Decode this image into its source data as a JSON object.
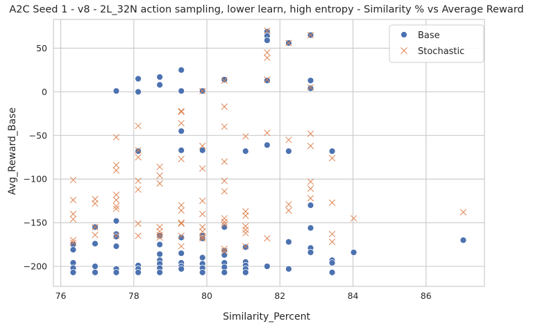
{
  "chart_data": {
    "type": "scatter",
    "title": "A2C Seed 1 - v8 - 2L_32N action sampling, lower learn, high entropy - Similarity % vs Average Reward",
    "xlabel": "Similarity_Percent",
    "ylabel": "Avg_Reward_Base",
    "xlim": [
      75.8,
      87.6
    ],
    "ylim": [
      -223,
      83
    ],
    "xticks": [
      76,
      78,
      80,
      82,
      84,
      86
    ],
    "yticks": [
      -200,
      -150,
      -100,
      -50,
      0,
      50
    ],
    "grid": true,
    "legend_position": "top-right",
    "series": [
      {
        "name": "Base",
        "marker": "circle",
        "color": "#4c72b0",
        "points": [
          [
            76.34,
            -175
          ],
          [
            76.34,
            -181
          ],
          [
            76.34,
            -196
          ],
          [
            76.34,
            -202
          ],
          [
            76.34,
            -207
          ],
          [
            76.94,
            -155
          ],
          [
            76.94,
            -174
          ],
          [
            76.94,
            -200
          ],
          [
            76.94,
            -207
          ],
          [
            77.52,
            1
          ],
          [
            77.52,
            -148
          ],
          [
            77.52,
            -163
          ],
          [
            77.52,
            -166
          ],
          [
            77.52,
            -177
          ],
          [
            77.52,
            -203
          ],
          [
            77.52,
            -207
          ],
          [
            78.12,
            15
          ],
          [
            78.12,
            0
          ],
          [
            78.12,
            -68
          ],
          [
            78.12,
            -199
          ],
          [
            78.12,
            -203
          ],
          [
            78.12,
            -207
          ],
          [
            78.71,
            17
          ],
          [
            78.71,
            8
          ],
          [
            78.71,
            -165
          ],
          [
            78.71,
            -175
          ],
          [
            78.71,
            -186
          ],
          [
            78.71,
            -193
          ],
          [
            78.71,
            -197
          ],
          [
            78.71,
            -202
          ],
          [
            78.71,
            -207
          ],
          [
            79.3,
            25
          ],
          [
            79.3,
            1
          ],
          [
            79.3,
            -45
          ],
          [
            79.3,
            -67
          ],
          [
            79.3,
            -167
          ],
          [
            79.3,
            -185
          ],
          [
            79.3,
            -196
          ],
          [
            79.3,
            -200
          ],
          [
            79.3,
            -203
          ],
          [
            79.88,
            1
          ],
          [
            79.88,
            -67
          ],
          [
            79.88,
            -165
          ],
          [
            79.88,
            -168
          ],
          [
            79.88,
            -190
          ],
          [
            79.88,
            -197
          ],
          [
            79.88,
            -202
          ],
          [
            79.88,
            -207
          ],
          [
            80.48,
            14
          ],
          [
            80.48,
            -155
          ],
          [
            80.48,
            -182
          ],
          [
            80.48,
            -187
          ],
          [
            80.48,
            -196
          ],
          [
            80.48,
            -201
          ],
          [
            80.48,
            -207
          ],
          [
            81.06,
            -68
          ],
          [
            81.06,
            -178
          ],
          [
            81.06,
            -195
          ],
          [
            81.06,
            -199
          ],
          [
            81.06,
            -203
          ],
          [
            81.06,
            -207
          ],
          [
            81.65,
            69
          ],
          [
            81.65,
            64
          ],
          [
            81.65,
            59
          ],
          [
            81.65,
            13
          ],
          [
            81.65,
            -61
          ],
          [
            81.65,
            -200
          ],
          [
            82.24,
            56
          ],
          [
            82.24,
            -68
          ],
          [
            82.24,
            -172
          ],
          [
            82.24,
            -203
          ],
          [
            82.84,
            65
          ],
          [
            82.84,
            13
          ],
          [
            82.84,
            4
          ],
          [
            82.84,
            -130
          ],
          [
            82.84,
            -156
          ],
          [
            82.84,
            -179
          ],
          [
            82.84,
            -184
          ],
          [
            83.43,
            -68
          ],
          [
            83.43,
            -193
          ],
          [
            83.43,
            -196
          ],
          [
            83.43,
            -207
          ],
          [
            84.02,
            -184
          ],
          [
            87.02,
            -170
          ]
        ]
      },
      {
        "name": "Stochastic",
        "marker": "x",
        "color": "#dd8452",
        "points": [
          [
            76.34,
            -101
          ],
          [
            76.34,
            -124
          ],
          [
            76.34,
            -140
          ],
          [
            76.34,
            -146
          ],
          [
            76.34,
            -170
          ],
          [
            76.34,
            -173
          ],
          [
            76.94,
            -123
          ],
          [
            76.94,
            -128
          ],
          [
            76.94,
            -155
          ],
          [
            76.94,
            -164
          ],
          [
            77.52,
            -52
          ],
          [
            77.52,
            -84
          ],
          [
            77.52,
            -90
          ],
          [
            77.52,
            -118
          ],
          [
            77.52,
            -124
          ],
          [
            77.52,
            -131
          ],
          [
            77.52,
            -134
          ],
          [
            77.52,
            -165
          ],
          [
            78.12,
            -39
          ],
          [
            78.12,
            -67
          ],
          [
            78.12,
            -75
          ],
          [
            78.12,
            -102
          ],
          [
            78.12,
            -112
          ],
          [
            78.12,
            -151
          ],
          [
            78.12,
            -165
          ],
          [
            78.71,
            -86
          ],
          [
            78.71,
            -96
          ],
          [
            78.71,
            -105
          ],
          [
            78.71,
            -155
          ],
          [
            78.71,
            -160
          ],
          [
            78.71,
            -164
          ],
          [
            78.71,
            -167
          ],
          [
            79.3,
            -22
          ],
          [
            79.3,
            -23
          ],
          [
            79.3,
            -36
          ],
          [
            79.3,
            -77
          ],
          [
            79.3,
            -130
          ],
          [
            79.3,
            -136
          ],
          [
            79.3,
            -150
          ],
          [
            79.3,
            -151
          ],
          [
            79.3,
            -165
          ],
          [
            79.3,
            -177
          ],
          [
            79.88,
            1
          ],
          [
            79.88,
            -62
          ],
          [
            79.88,
            -88
          ],
          [
            79.88,
            -125
          ],
          [
            79.88,
            -140
          ],
          [
            79.88,
            -155
          ],
          [
            79.88,
            -160
          ],
          [
            79.88,
            -166
          ],
          [
            79.88,
            -168
          ],
          [
            80.48,
            13
          ],
          [
            80.48,
            -17
          ],
          [
            80.48,
            -40
          ],
          [
            80.48,
            -80
          ],
          [
            80.48,
            -102
          ],
          [
            80.48,
            -114
          ],
          [
            80.48,
            -145
          ],
          [
            80.48,
            -149
          ],
          [
            80.48,
            -152
          ],
          [
            80.48,
            -180
          ],
          [
            80.48,
            -183
          ],
          [
            81.06,
            -51
          ],
          [
            81.06,
            -137
          ],
          [
            81.06,
            -142
          ],
          [
            81.06,
            -154
          ],
          [
            81.06,
            -158
          ],
          [
            81.06,
            -162
          ],
          [
            81.06,
            -177
          ],
          [
            81.65,
            70
          ],
          [
            81.65,
            45
          ],
          [
            81.65,
            39
          ],
          [
            81.65,
            14
          ],
          [
            81.65,
            -47
          ],
          [
            81.65,
            -168
          ],
          [
            82.24,
            56
          ],
          [
            82.24,
            -55
          ],
          [
            82.24,
            -129
          ],
          [
            82.24,
            -136
          ],
          [
            82.84,
            65
          ],
          [
            82.84,
            5
          ],
          [
            82.84,
            -48
          ],
          [
            82.84,
            -62
          ],
          [
            82.84,
            -103
          ],
          [
            82.84,
            -111
          ],
          [
            82.84,
            -122
          ],
          [
            83.43,
            -76
          ],
          [
            83.43,
            -127
          ],
          [
            83.43,
            -163
          ],
          [
            83.43,
            -172
          ],
          [
            84.02,
            -145
          ],
          [
            87.02,
            -138
          ]
        ]
      }
    ]
  }
}
